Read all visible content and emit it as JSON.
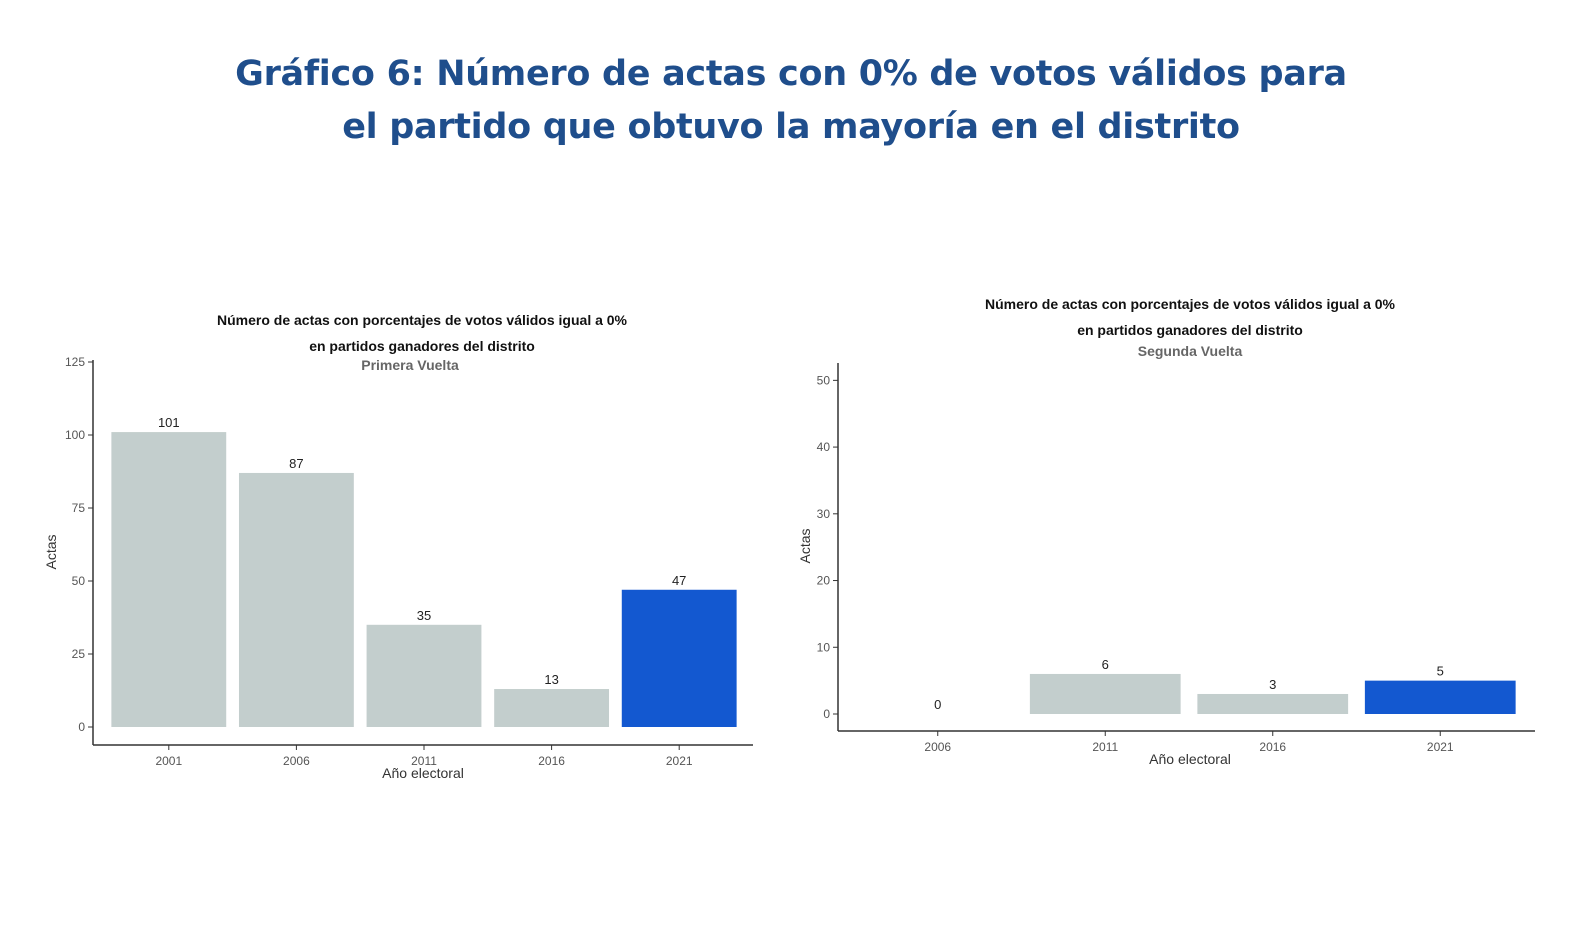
{
  "page": {
    "title_line1": "Gráfico 6: Número de actas con 0% de votos válidos para",
    "title_line2": "el partido que obtuvo la mayoría en el distrito"
  },
  "colors": {
    "title": "#1f4e8c",
    "bar": "#c3cecd",
    "highlight": "#1358d0",
    "axis": "#333333"
  },
  "chart_data": [
    {
      "type": "bar",
      "title_line1": "Número de actas con porcentajes de votos válidos igual a 0%",
      "title_line2": "en partidos ganadores del distrito",
      "subtitle": "Primera Vuelta",
      "categories": [
        "2001",
        "2006",
        "2011",
        "2016",
        "2021"
      ],
      "values": [
        101,
        87,
        35,
        13,
        47
      ],
      "highlight_index": 4,
      "xlabel": "Año electoral",
      "ylabel": "Actas",
      "ylim": [
        0,
        125
      ],
      "yticks": [
        0,
        25,
        50,
        75,
        100,
        125
      ]
    },
    {
      "type": "bar",
      "title_line1": "Número de actas con porcentajes de votos válidos igual a 0%",
      "title_line2": "en partidos ganadores del distrito",
      "subtitle": "Segunda Vuelta",
      "categories": [
        "2006",
        "2011",
        "2016",
        "2021"
      ],
      "values": [
        0,
        6,
        3,
        5
      ],
      "highlight_index": 3,
      "xlabel": "Año electoral",
      "ylabel": "Actas",
      "ylim": [
        0,
        52
      ],
      "yticks": [
        0,
        10,
        20,
        30,
        40,
        50
      ]
    }
  ]
}
